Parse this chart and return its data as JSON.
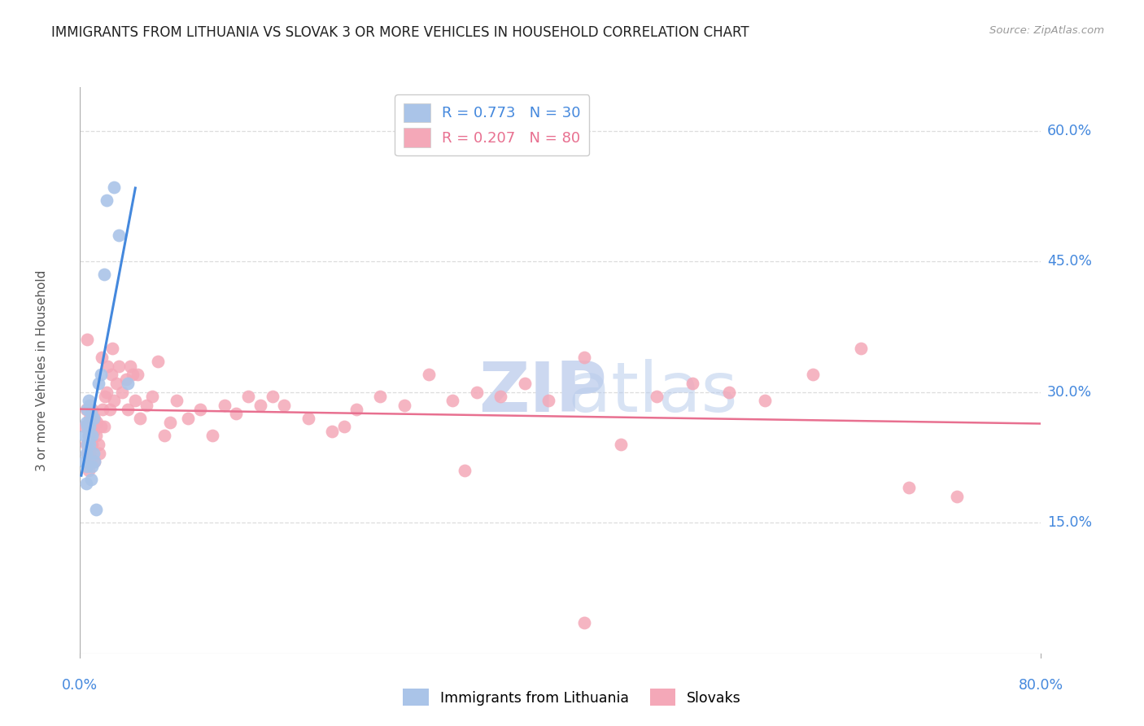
{
  "title": "IMMIGRANTS FROM LITHUANIA VS SLOVAK 3 OR MORE VEHICLES IN HOUSEHOLD CORRELATION CHART",
  "source": "Source: ZipAtlas.com",
  "ylabel": "3 or more Vehicles in Household",
  "xlim": [
    0.0,
    0.8
  ],
  "ylim": [
    0.0,
    0.65
  ],
  "yticks": [
    0.15,
    0.3,
    0.45,
    0.6
  ],
  "ytick_labels": [
    "15.0%",
    "30.0%",
    "45.0%",
    "60.0%"
  ],
  "legend1_label": "R = 0.773   N = 30",
  "legend2_label": "R = 0.207   N = 80",
  "legend1_color": "#aac4e8",
  "legend2_color": "#f4a8b8",
  "line1_color": "#4488dd",
  "line2_color": "#e87090",
  "background_color": "#ffffff",
  "grid_color": "#dddddd",
  "title_color": "#222222",
  "right_axis_color": "#4488dd",
  "lithuania_x": [
    0.004,
    0.004,
    0.005,
    0.005,
    0.005,
    0.006,
    0.006,
    0.006,
    0.006,
    0.007,
    0.007,
    0.007,
    0.008,
    0.008,
    0.008,
    0.009,
    0.009,
    0.01,
    0.01,
    0.011,
    0.011,
    0.012,
    0.013,
    0.015,
    0.017,
    0.02,
    0.022,
    0.028,
    0.032,
    0.04
  ],
  "lithuania_y": [
    0.22,
    0.25,
    0.23,
    0.265,
    0.195,
    0.24,
    0.26,
    0.28,
    0.215,
    0.25,
    0.29,
    0.265,
    0.24,
    0.26,
    0.285,
    0.2,
    0.275,
    0.215,
    0.25,
    0.23,
    0.27,
    0.22,
    0.165,
    0.31,
    0.32,
    0.435,
    0.52,
    0.535,
    0.48,
    0.31
  ],
  "slovak_x": [
    0.004,
    0.005,
    0.005,
    0.006,
    0.006,
    0.007,
    0.007,
    0.008,
    0.008,
    0.009,
    0.009,
    0.01,
    0.01,
    0.011,
    0.012,
    0.012,
    0.013,
    0.014,
    0.015,
    0.016,
    0.017,
    0.018,
    0.019,
    0.02,
    0.021,
    0.022,
    0.023,
    0.025,
    0.026,
    0.027,
    0.028,
    0.03,
    0.032,
    0.035,
    0.038,
    0.04,
    0.042,
    0.044,
    0.046,
    0.048,
    0.05,
    0.055,
    0.06,
    0.065,
    0.07,
    0.075,
    0.08,
    0.09,
    0.1,
    0.11,
    0.12,
    0.13,
    0.14,
    0.15,
    0.16,
    0.17,
    0.19,
    0.21,
    0.22,
    0.23,
    0.25,
    0.27,
    0.29,
    0.31,
    0.33,
    0.35,
    0.37,
    0.39,
    0.42,
    0.45,
    0.48,
    0.51,
    0.54,
    0.57,
    0.61,
    0.65,
    0.69,
    0.73,
    0.32,
    0.42
  ],
  "slovak_y": [
    0.26,
    0.24,
    0.28,
    0.23,
    0.36,
    0.25,
    0.21,
    0.27,
    0.23,
    0.22,
    0.26,
    0.24,
    0.28,
    0.255,
    0.22,
    0.27,
    0.25,
    0.265,
    0.24,
    0.23,
    0.26,
    0.34,
    0.28,
    0.26,
    0.295,
    0.3,
    0.33,
    0.28,
    0.32,
    0.35,
    0.29,
    0.31,
    0.33,
    0.3,
    0.315,
    0.28,
    0.33,
    0.32,
    0.29,
    0.32,
    0.27,
    0.285,
    0.295,
    0.335,
    0.25,
    0.265,
    0.29,
    0.27,
    0.28,
    0.25,
    0.285,
    0.275,
    0.295,
    0.285,
    0.295,
    0.285,
    0.27,
    0.255,
    0.26,
    0.28,
    0.295,
    0.285,
    0.32,
    0.29,
    0.3,
    0.295,
    0.31,
    0.29,
    0.34,
    0.24,
    0.295,
    0.31,
    0.3,
    0.29,
    0.32,
    0.35,
    0.19,
    0.18,
    0.21,
    0.035
  ]
}
